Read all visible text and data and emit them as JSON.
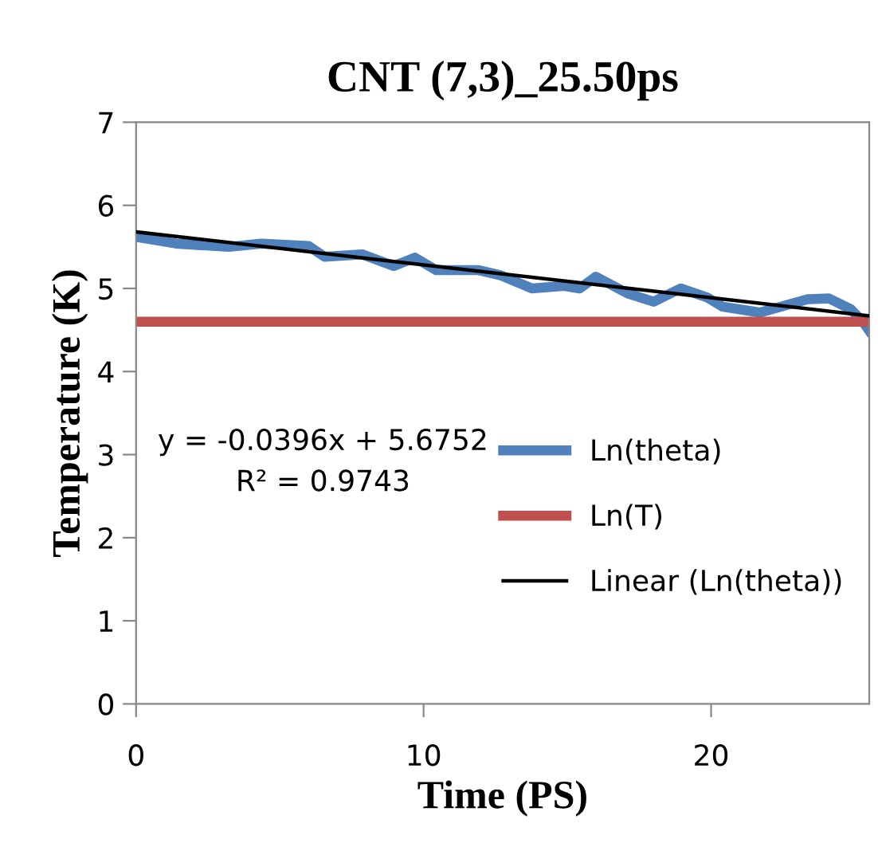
{
  "chart_data": {
    "type": "line",
    "title": "CNT (7,3)_25.50ps",
    "xlabel": "Time (PS)",
    "ylabel": "Temperature (K)",
    "xlim": [
      0,
      25.5
    ],
    "ylim": [
      0,
      7
    ],
    "xticks": [
      0,
      10,
      20
    ],
    "yticks": [
      0,
      1,
      2,
      3,
      4,
      5,
      6,
      7
    ],
    "grid": false,
    "legend": "right",
    "marker": "none",
    "series": [
      {
        "name": "Ln(theta)",
        "color": "#4f81bd",
        "x": [
          0,
          1.39,
          3.23,
          4.34,
          6.0,
          6.56,
          7.86,
          8.96,
          9.7,
          10.44,
          11.92,
          12.66,
          13.77,
          14.88,
          15.43,
          15.99,
          17.1,
          18.0,
          18.94,
          19.87,
          20.4,
          21.7,
          23.36,
          24.1,
          24.86,
          25.3,
          25.5
        ],
        "values": [
          5.62,
          5.54,
          5.5,
          5.54,
          5.51,
          5.38,
          5.41,
          5.27,
          5.37,
          5.22,
          5.22,
          5.16,
          5.0,
          5.03,
          5.0,
          5.14,
          4.94,
          4.84,
          5.0,
          4.89,
          4.78,
          4.71,
          4.87,
          4.88,
          4.75,
          4.59,
          4.49
        ]
      },
      {
        "name": "Ln(T)",
        "color": "#c0504d",
        "x": [
          0,
          25.5
        ],
        "values": [
          4.6,
          4.6
        ]
      },
      {
        "name": "Linear (Ln(theta))",
        "color": "#000000",
        "x": [
          0,
          25.5
        ],
        "values": [
          5.68,
          4.67
        ]
      }
    ],
    "annotations": [
      "y = -0.0396x + 5.6752\nR² = 0.9743"
    ]
  }
}
